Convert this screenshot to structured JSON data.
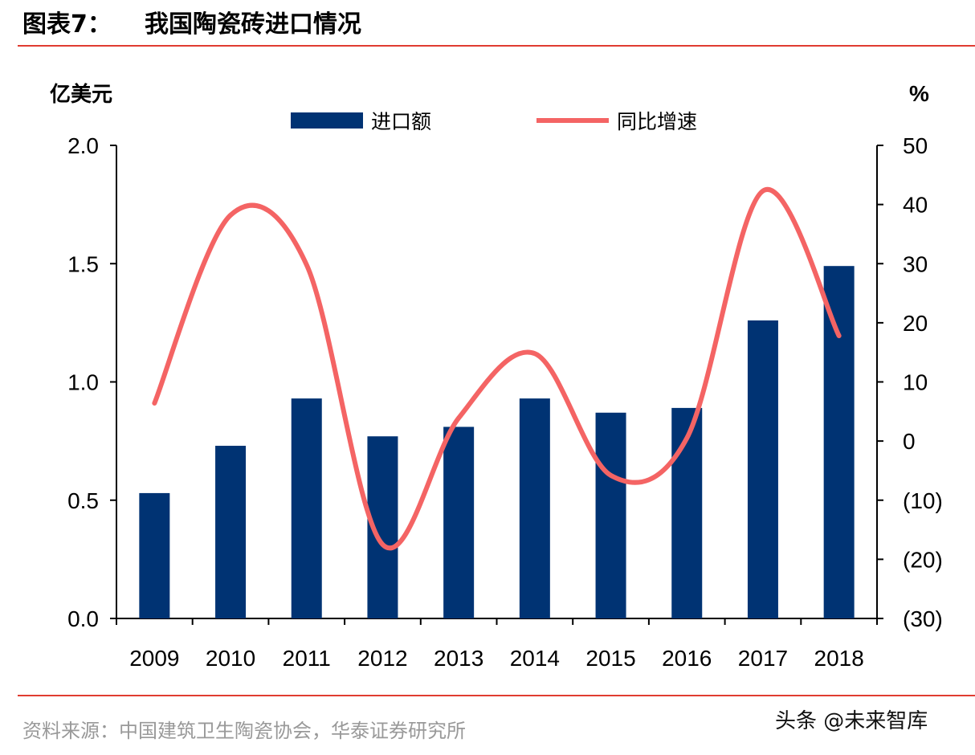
{
  "header": {
    "title_prefix": "图表7：",
    "title": "我国陶瓷砖进口情况"
  },
  "footer": {
    "source": "资料来源：中国建筑卫生陶瓷协会，华泰证券研究所",
    "watermark": "头条 @未来智库"
  },
  "colors": {
    "bar": "#003373",
    "line": "#F46464",
    "rule": "#E03C31"
  },
  "chart_data": {
    "type": "bar+line",
    "title": "我国陶瓷砖进口情况",
    "ylabel_left": "亿美元",
    "ylabel_right": "%",
    "categories": [
      "2009",
      "2010",
      "2011",
      "2012",
      "2013",
      "2014",
      "2015",
      "2016",
      "2017",
      "2018"
    ],
    "series": [
      {
        "name": "进口额",
        "type": "bar",
        "axis": "left",
        "values": [
          0.53,
          0.73,
          0.93,
          0.77,
          0.81,
          0.93,
          0.87,
          0.89,
          1.26,
          1.49
        ]
      },
      {
        "name": "同比增速",
        "type": "line",
        "axis": "right",
        "smooth": true,
        "values": [
          6.4,
          38.2,
          29.8,
          -17.5,
          3.9,
          14.8,
          -5.8,
          0.5,
          42.3,
          17.8
        ]
      }
    ],
    "ylim_left": [
      0,
      2.0
    ],
    "yticks_left": [
      "0.0",
      "0.5",
      "1.0",
      "1.5",
      "2.0"
    ],
    "ylim_right": [
      -30,
      50
    ],
    "yticks_right": [
      "(30)",
      "(20)",
      "(10)",
      "0",
      "10",
      "20",
      "30",
      "40",
      "50"
    ],
    "grid": false,
    "legend": "top-center"
  }
}
